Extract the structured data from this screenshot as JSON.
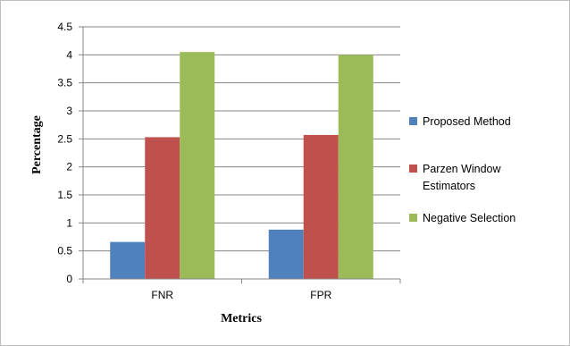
{
  "chart_data": {
    "type": "bar",
    "categories": [
      "FNR",
      "FPR"
    ],
    "series": [
      {
        "name": "Proposed Method",
        "values": [
          0.66,
          0.88
        ],
        "color": "#4F81BD"
      },
      {
        "name": "Parzen Window Estimators",
        "values": [
          2.53,
          2.57
        ],
        "color": "#C0504D"
      },
      {
        "name": "Negative Selection",
        "values": [
          4.05,
          4.0
        ],
        "color": "#9BBB59"
      }
    ],
    "xlabel": "Metrics",
    "ylabel": "Percentage",
    "ylim": [
      0,
      4.5
    ],
    "yticks": [
      "0",
      "0.5",
      "1",
      "1.5",
      "2",
      "2.5",
      "3",
      "3.5",
      "4",
      "4.5"
    ],
    "grid": true,
    "legend_position": "right",
    "legend_labels": [
      [
        "Proposed Method"
      ],
      [
        "Parzen Window",
        "Estimators"
      ],
      [
        "Negative Selection"
      ]
    ]
  }
}
